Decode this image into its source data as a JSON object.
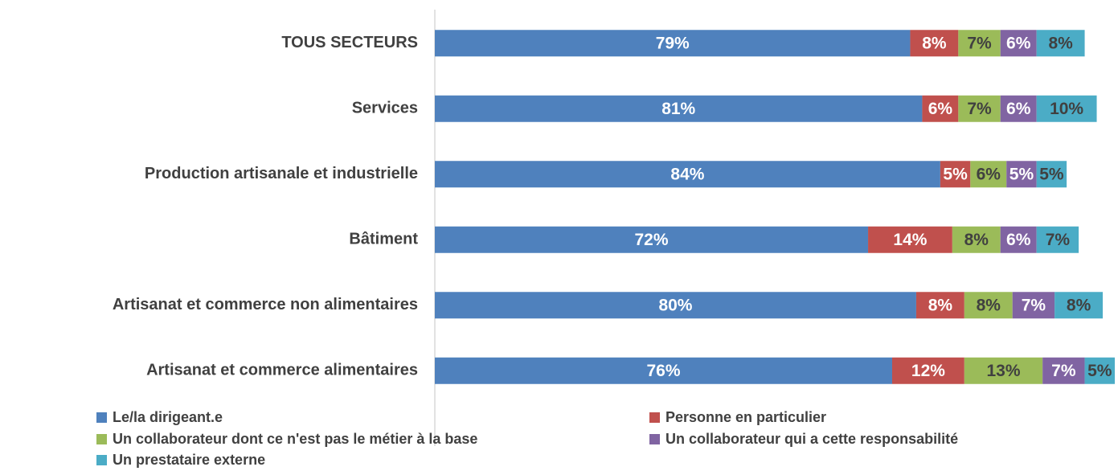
{
  "chart_data": {
    "type": "stacked-bar-horizontal",
    "categories": [
      "TOUS SECTEURS",
      "Services",
      "Production artisanale et industrielle",
      "Bâtiment",
      "Artisanat et commerce non alimentaires",
      "Artisanat et commerce alimentaires"
    ],
    "xlim": [
      0,
      113
    ],
    "series": [
      {
        "name": "Le/la dirigeant.e",
        "color": "#4f81bd",
        "label_color": "#ffffff",
        "values": [
          79,
          81,
          84,
          72,
          80,
          76
        ],
        "value_labels": [
          "79%",
          "81%",
          "84%",
          "72%",
          "80%",
          "76%"
        ]
      },
      {
        "name": "Personne en particulier",
        "color": "#c0504d",
        "label_color": "#ffffff",
        "values": [
          8,
          6,
          5,
          14,
          8,
          12
        ],
        "value_labels": [
          "8%",
          "6%",
          "5%",
          "14%",
          "8%",
          "12%"
        ]
      },
      {
        "name": "Un collaborateur dont ce n'est pas le métier à la base",
        "color": "#9bbb59",
        "label_color": "#404040",
        "values": [
          7,
          7,
          6,
          8,
          8,
          13
        ],
        "value_labels": [
          "7%",
          "7%",
          "6%",
          "8%",
          "8%",
          "13%"
        ]
      },
      {
        "name": "Un collaborateur qui a cette responsabilité",
        "color": "#8064a2",
        "label_color": "#ffffff",
        "values": [
          6,
          6,
          5,
          6,
          7,
          7
        ],
        "value_labels": [
          "6%",
          "6%",
          "5%",
          "6%",
          "7%",
          "7%"
        ]
      },
      {
        "name": "Un prestataire externe",
        "color": "#4bacc6",
        "label_color": "#404040",
        "values": [
          8,
          10,
          5,
          7,
          8,
          5
        ],
        "value_labels": [
          "8%",
          "10%",
          "5%",
          "7%",
          "8%",
          "5%"
        ]
      }
    ]
  }
}
